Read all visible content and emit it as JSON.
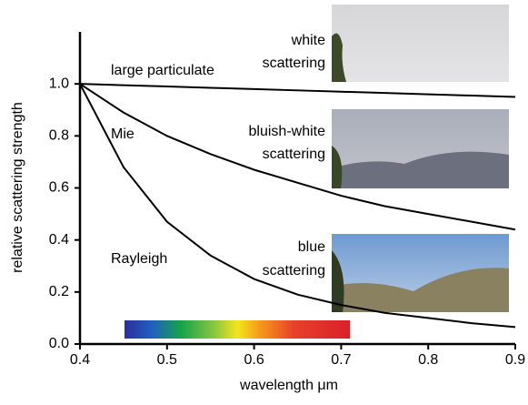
{
  "chart_data": {
    "type": "line",
    "x_label": "wavelength μm",
    "y_label": "relative scattering strength",
    "x": [
      0.4,
      0.45,
      0.5,
      0.55,
      0.6,
      0.65,
      0.7,
      0.75,
      0.8,
      0.85,
      0.9
    ],
    "series": [
      {
        "name": "large particulate",
        "color": "#000000",
        "values": [
          1.0,
          0.995,
          0.99,
          0.985,
          0.98,
          0.975,
          0.97,
          0.965,
          0.96,
          0.955,
          0.95
        ]
      },
      {
        "name": "Mie",
        "color": "#000000",
        "values": [
          1.0,
          0.89,
          0.8,
          0.73,
          0.67,
          0.62,
          0.57,
          0.53,
          0.5,
          0.47,
          0.44
        ]
      },
      {
        "name": "Rayleigh",
        "color": "#000000",
        "values": [
          1.0,
          0.68,
          0.47,
          0.34,
          0.25,
          0.19,
          0.15,
          0.12,
          0.1,
          0.08,
          0.065
        ]
      }
    ],
    "photo_captions": [
      [
        "white",
        "scattering"
      ],
      [
        "bluish-white",
        "scattering"
      ],
      [
        "blue",
        "scattering"
      ]
    ],
    "xlim": [
      0.4,
      0.9
    ],
    "ylim": [
      0,
      1.2
    ],
    "xticks": [
      0.4,
      0.5,
      0.6,
      0.7,
      0.8,
      0.9
    ],
    "yticks": [
      {
        "value": 0,
        "label": "0.0"
      },
      0.2,
      0.4,
      0.6,
      0.8,
      {
        "value": 1,
        "label": "1.0"
      }
    ]
  }
}
